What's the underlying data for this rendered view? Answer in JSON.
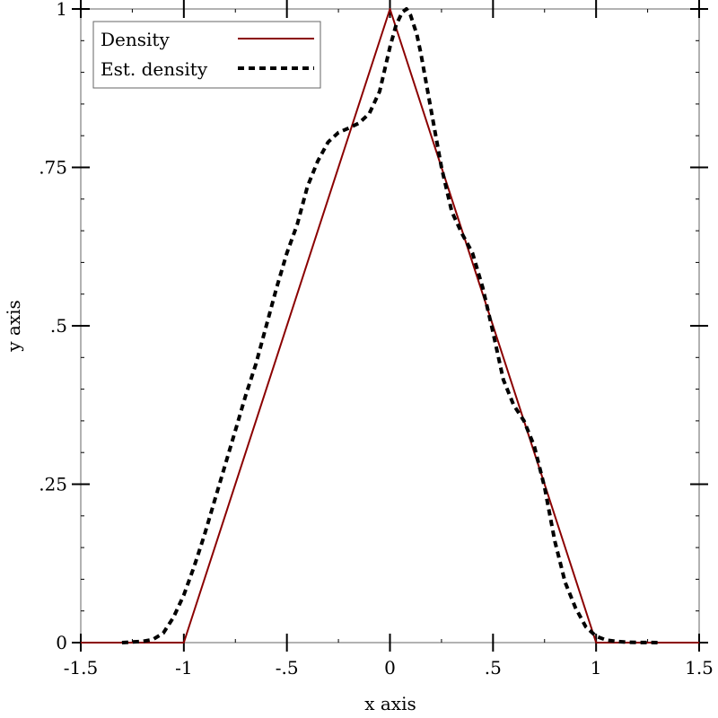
{
  "chart_data": {
    "type": "line",
    "title": "",
    "xlabel": "x axis",
    "ylabel": "y axis",
    "xlim": [
      -1.5,
      1.5
    ],
    "ylim": [
      0,
      1
    ],
    "x_ticks": [
      {
        "value": -1.5,
        "label": "-1.5"
      },
      {
        "value": -1,
        "label": "-1"
      },
      {
        "value": -0.5,
        "label": "-.5"
      },
      {
        "value": 0,
        "label": "0"
      },
      {
        "value": 0.5,
        "label": ".5"
      },
      {
        "value": 1,
        "label": "1"
      },
      {
        "value": 1.5,
        "label": "1.5"
      }
    ],
    "y_ticks": [
      {
        "value": 0,
        "label": "0"
      },
      {
        "value": 0.25,
        "label": ".25"
      },
      {
        "value": 0.5,
        "label": ".5"
      },
      {
        "value": 0.75,
        "label": ".75"
      },
      {
        "value": 1,
        "label": "1"
      }
    ],
    "grid": false,
    "legend_position": "top-left",
    "series": [
      {
        "name": "Density",
        "style": "solid",
        "color": "#8b0000",
        "x": [
          -1.5,
          -1,
          0,
          1,
          1.5
        ],
        "y": [
          0,
          0,
          1,
          0,
          0
        ]
      },
      {
        "name": "Est. density",
        "style": "dashed",
        "color": "#000000",
        "x": [
          -1.3,
          -1.25,
          -1.2,
          -1.15,
          -1.1,
          -1.05,
          -1.0,
          -0.95,
          -0.9,
          -0.85,
          -0.8,
          -0.75,
          -0.7,
          -0.65,
          -0.6,
          -0.55,
          -0.5,
          -0.45,
          -0.4,
          -0.35,
          -0.3,
          -0.25,
          -0.2,
          -0.15,
          -0.1,
          -0.05,
          0.0,
          0.03,
          0.06,
          0.08,
          0.1,
          0.13,
          0.15,
          0.2,
          0.25,
          0.3,
          0.35,
          0.4,
          0.45,
          0.5,
          0.55,
          0.6,
          0.65,
          0.7,
          0.75,
          0.8,
          0.85,
          0.9,
          0.95,
          1.0,
          1.05,
          1.1,
          1.15,
          1.2,
          1.25,
          1.3
        ],
        "y": [
          0.0,
          0.001,
          0.002,
          0.005,
          0.015,
          0.04,
          0.075,
          0.12,
          0.17,
          0.225,
          0.28,
          0.335,
          0.39,
          0.44,
          0.5,
          0.56,
          0.615,
          0.66,
          0.72,
          0.76,
          0.79,
          0.805,
          0.812,
          0.82,
          0.835,
          0.87,
          0.94,
          0.975,
          0.995,
          1.0,
          0.99,
          0.96,
          0.93,
          0.84,
          0.75,
          0.68,
          0.645,
          0.615,
          0.56,
          0.49,
          0.415,
          0.375,
          0.35,
          0.31,
          0.245,
          0.16,
          0.095,
          0.055,
          0.025,
          0.01,
          0.004,
          0.002,
          0.0005,
          0.0003,
          0.0002,
          0.0
        ]
      }
    ]
  }
}
